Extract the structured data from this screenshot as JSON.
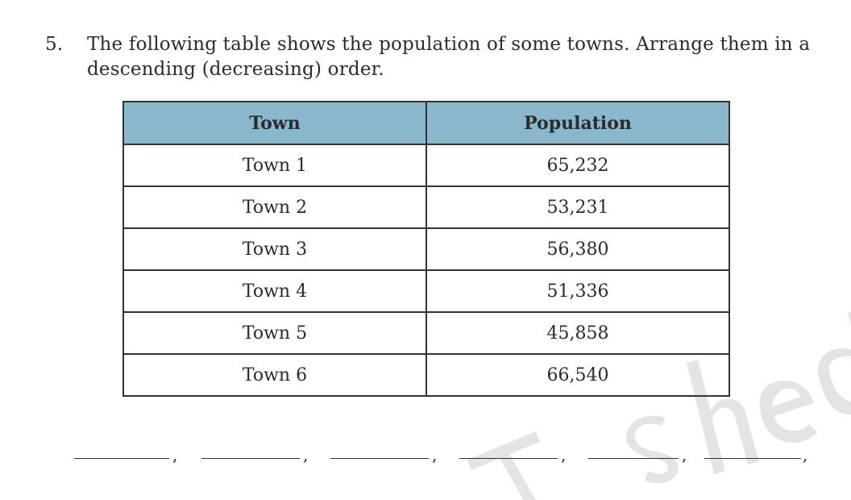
{
  "question": {
    "number": "5.",
    "text": "The following table shows the population of some towns. Arrange them in a descending (decreasing) order."
  },
  "table": {
    "headers": [
      "Town",
      "Population"
    ],
    "rows": [
      [
        "Town 1",
        "65,232"
      ],
      [
        "Town 2",
        "53,231"
      ],
      [
        "Town 3",
        "56,380"
      ],
      [
        "Town 4",
        "51,336"
      ],
      [
        "Town 5",
        "45,858"
      ],
      [
        "Town 6",
        "66,540"
      ]
    ]
  },
  "answer_separator": ",",
  "watermark": {
    "text": "T... ished",
    "color": "#d9d9d9"
  },
  "colors": {
    "header_bg": "#8bb7cc",
    "border": "#333333"
  }
}
